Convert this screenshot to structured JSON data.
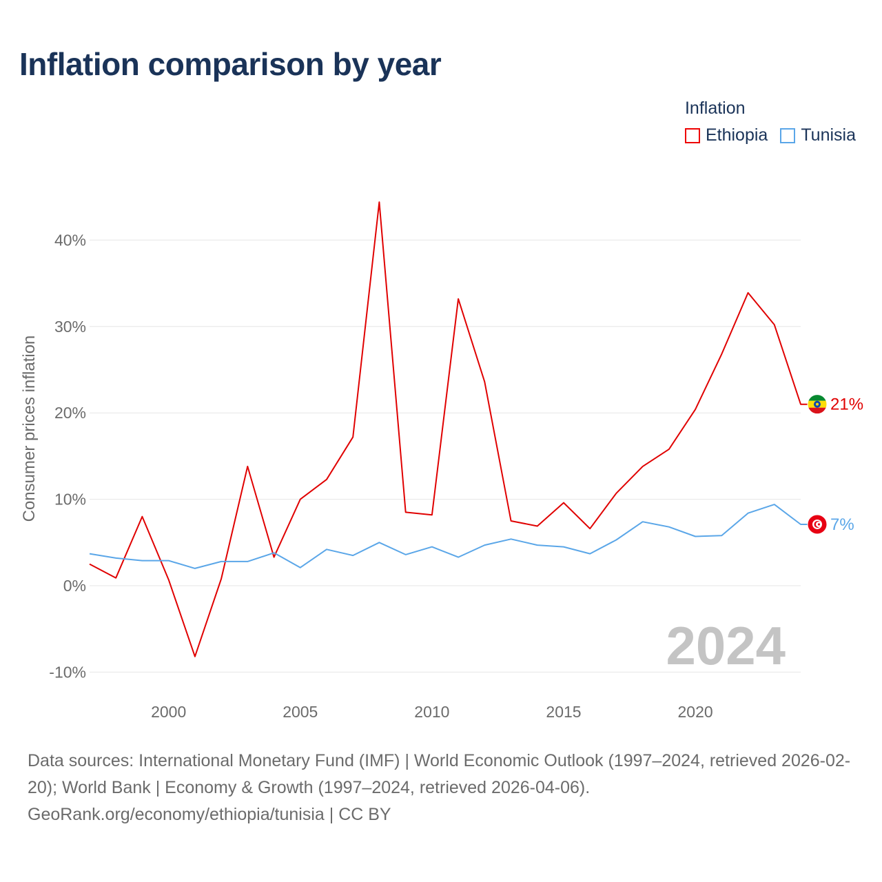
{
  "title": "Inflation comparison by year",
  "legend": {
    "title": "Inflation",
    "items": [
      {
        "label": "Ethiopia",
        "color": "#e00000"
      },
      {
        "label": "Tunisia",
        "color": "#5aa6e8"
      }
    ]
  },
  "footer": {
    "sources": "Data sources: International Monetary Fund (IMF) | World Economic Outlook (1997–2024, retrieved 2026-02-20); World Bank | Economy & Growth (1997–2024, retrieved 2026-04-06).",
    "credit": "GeoRank.org/economy/ethiopia/tunisia | CC BY"
  },
  "chart_data": {
    "type": "line",
    "title": "Inflation comparison by year",
    "xlabel": "",
    "ylabel": "Consumer prices inflation",
    "year_label": "2024",
    "x": [
      1997,
      1998,
      1999,
      2000,
      2001,
      2002,
      2003,
      2004,
      2005,
      2006,
      2007,
      2008,
      2009,
      2010,
      2011,
      2012,
      2013,
      2014,
      2015,
      2016,
      2017,
      2018,
      2019,
      2020,
      2021,
      2022,
      2023,
      2024
    ],
    "xlim": [
      1997,
      2024
    ],
    "ylim": [
      -10,
      45
    ],
    "x_ticks": [
      2000,
      2005,
      2010,
      2015,
      2020
    ],
    "y_ticks": [
      -10,
      0,
      10,
      20,
      30,
      40
    ],
    "y_tick_labels": [
      "-10%",
      "0%",
      "10%",
      "20%",
      "30%",
      "40%"
    ],
    "grid": true,
    "series": [
      {
        "name": "Ethiopia",
        "color": "#e00000",
        "end_label": "21%",
        "values": [
          2.5,
          0.9,
          8.0,
          0.7,
          -8.2,
          0.8,
          13.8,
          3.3,
          10.0,
          12.3,
          17.2,
          44.4,
          8.5,
          8.2,
          33.2,
          23.6,
          7.5,
          6.9,
          9.6,
          6.6,
          10.7,
          13.8,
          15.8,
          20.4,
          26.8,
          33.9,
          30.2,
          21.0
        ]
      },
      {
        "name": "Tunisia",
        "color": "#5aa6e8",
        "end_label": "7%",
        "values": [
          3.7,
          3.2,
          2.9,
          2.9,
          2.0,
          2.8,
          2.8,
          3.8,
          2.1,
          4.2,
          3.5,
          5.0,
          3.6,
          4.5,
          3.3,
          4.7,
          5.4,
          4.7,
          4.5,
          3.7,
          5.3,
          7.4,
          6.8,
          5.7,
          5.8,
          8.4,
          9.4,
          7.1
        ]
      }
    ]
  }
}
